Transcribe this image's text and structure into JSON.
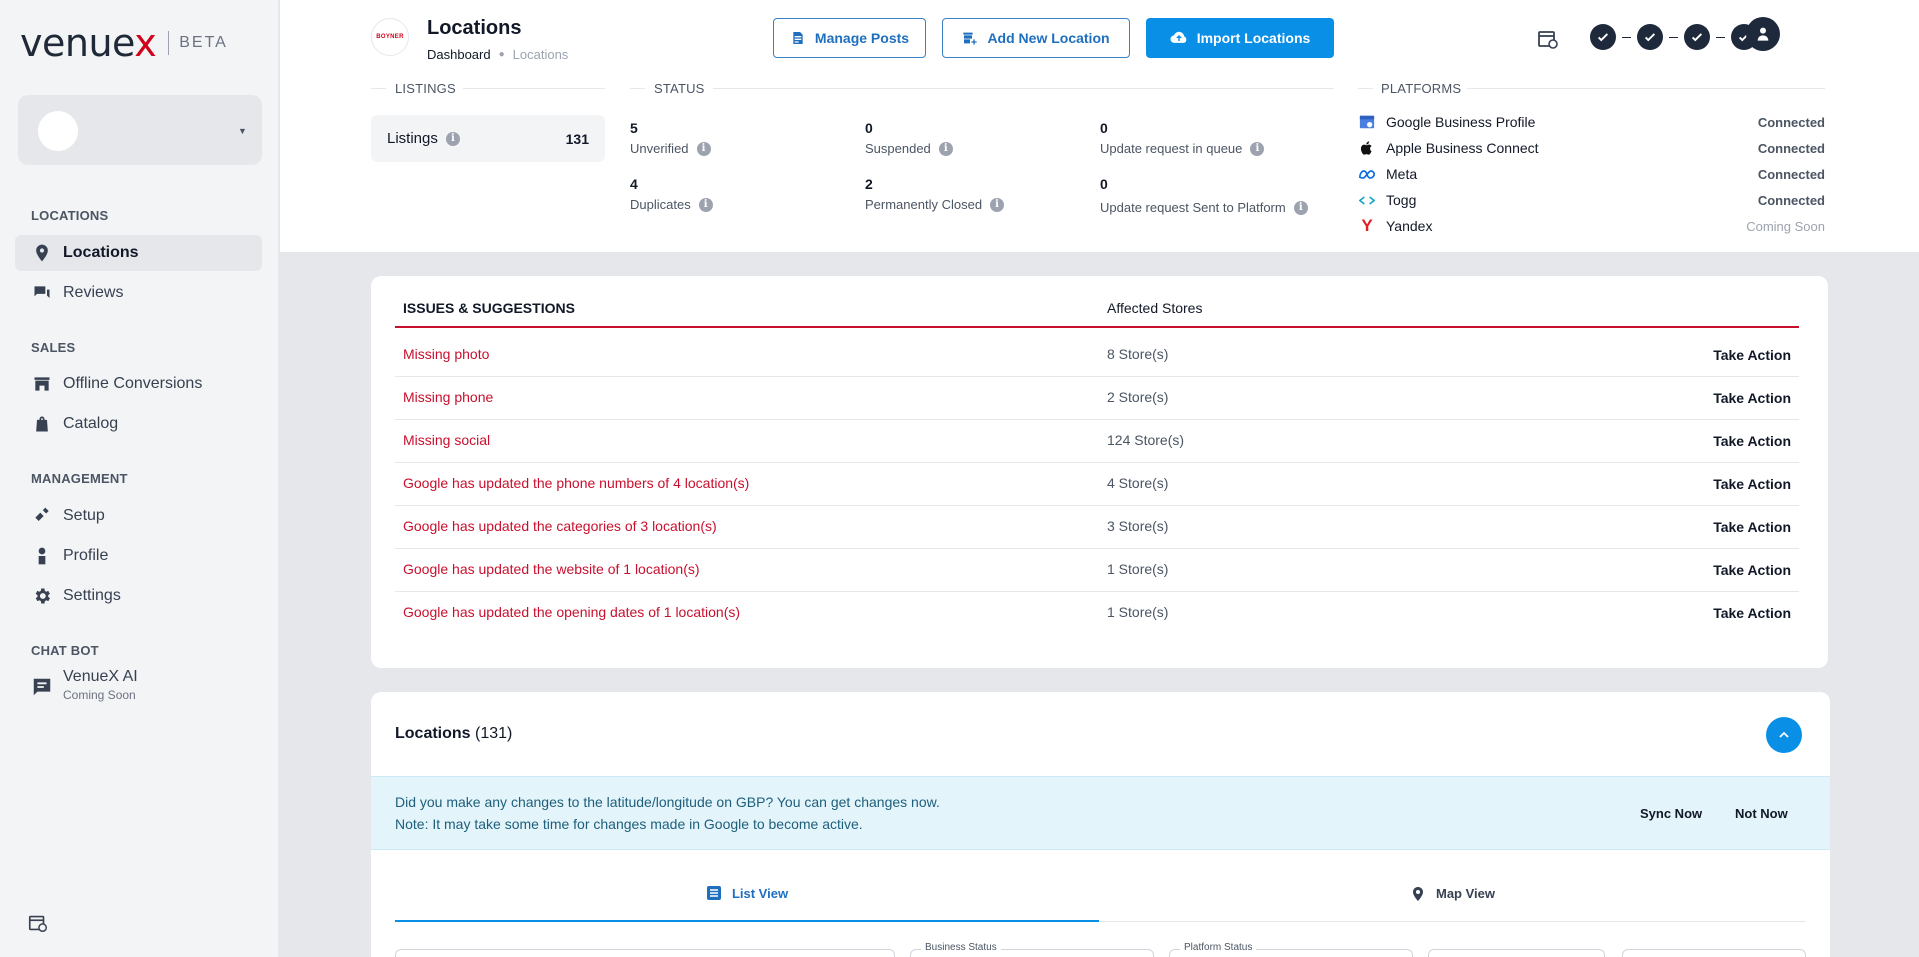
{
  "sidebar": {
    "logo_text": "venuex",
    "logo_badge": "BETA",
    "sections": {
      "locations": "LOCATIONS",
      "sales": "SALES",
      "management": "MANAGEMENT",
      "chatbot": "CHAT BOT"
    },
    "items": {
      "locations": "Locations",
      "reviews": "Reviews",
      "offline_conversions": "Offline Conversions",
      "catalog": "Catalog",
      "setup": "Setup",
      "profile": "Profile",
      "settings": "Settings"
    },
    "chatbot": {
      "name": "VenueX AI",
      "status": "Coming Soon"
    }
  },
  "header": {
    "brand_badge": "BOYNER",
    "title": "Locations",
    "breadcrumb": {
      "root": "Dashboard",
      "current": "Locations"
    },
    "buttons": {
      "manage_posts": "Manage Posts",
      "add_location": "Add New Location",
      "import_locations": "Import Locations"
    },
    "accent_color": "#0a8fe6"
  },
  "summary": {
    "listings_label": "LISTINGS",
    "listings_name": "Listings",
    "listings_count": "131",
    "status_label": "STATUS",
    "status": {
      "unverified": {
        "value": "5",
        "label": "Unverified"
      },
      "suspended": {
        "value": "0",
        "label": "Suspended"
      },
      "queue": {
        "value": "0",
        "label": "Update request in queue"
      },
      "duplicates": {
        "value": "4",
        "label": "Duplicates"
      },
      "closed": {
        "value": "2",
        "label": "Permanently Closed"
      },
      "sent": {
        "value": "0",
        "label": "Update request Sent to Platform"
      }
    },
    "platforms_label": "PLATFORMS",
    "platforms": [
      {
        "name": "Google Business Profile",
        "status": "Connected"
      },
      {
        "name": "Apple Business Connect",
        "status": "Connected"
      },
      {
        "name": "Meta",
        "status": "Connected"
      },
      {
        "name": "Togg",
        "status": "Connected"
      },
      {
        "name": "Yandex",
        "status": "Coming Soon"
      }
    ]
  },
  "issues": {
    "header_issue": "ISSUES & SUGGESTIONS",
    "header_stores": "Affected Stores",
    "action_label": "Take Action",
    "rows": [
      {
        "issue": "Missing photo",
        "stores": "8 Store(s)"
      },
      {
        "issue": "Missing phone",
        "stores": "2 Store(s)"
      },
      {
        "issue": "Missing social",
        "stores": "124 Store(s)"
      },
      {
        "issue": "Google has updated the phone numbers of 4 location(s)",
        "stores": "4 Store(s)"
      },
      {
        "issue": "Google has updated the categories of 3 location(s)",
        "stores": "3 Store(s)"
      },
      {
        "issue": "Google has updated the website of 1 location(s)",
        "stores": "1 Store(s)"
      },
      {
        "issue": "Google has updated the opening dates of 1 location(s)",
        "stores": "1 Store(s)"
      }
    ],
    "accent_color": "#c8102e"
  },
  "locations_panel": {
    "title": "Locations",
    "count": "(131)",
    "notice_line1": "Did you make any changes to the latitude/longitude on GBP? You can get changes now.",
    "notice_line2": "Note: It may take some time for changes made in Google to become active.",
    "sync_now": "Sync Now",
    "not_now": "Not Now",
    "tabs": {
      "list": "List View",
      "map": "Map View"
    },
    "filters": {
      "business_status": "Business Status",
      "platform_status": "Platform Status"
    }
  }
}
